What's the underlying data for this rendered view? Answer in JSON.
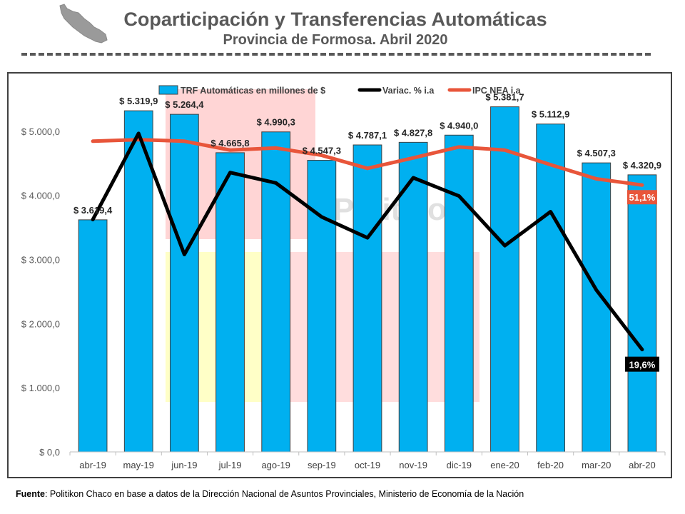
{
  "header": {
    "title": "Coparticipación y Transferencias Automáticas",
    "subtitle": "Provincia de Formosa. Abril 2020"
  },
  "footer": {
    "source_label": "Fuente",
    "source_text": ": Politikon Chaco en base a datos de la Dirección Nacional de Asuntos Provinciales, Ministerio de Economía de la Nación"
  },
  "colors": {
    "bars": "#00B0F0",
    "variation_line": "#000000",
    "ipc_line": "#E8553A",
    "watermark_red": "#FFB3B3",
    "watermark_yellow": "#FFFF99"
  },
  "chart_data": {
    "type": "bar",
    "categories": [
      "abr-19",
      "may-19",
      "jun-19",
      "jul-19",
      "ago-19",
      "sep-19",
      "oct-19",
      "nov-19",
      "dic-19",
      "ene-20",
      "feb-20",
      "mar-20",
      "abr-20"
    ],
    "series": [
      {
        "name": "TRF Automáticas en millones de $",
        "type": "bar",
        "values": [
          3619.4,
          5319.9,
          5264.4,
          4665.8,
          4990.3,
          4547.3,
          4787.1,
          4827.8,
          4940.0,
          5381.7,
          5112.9,
          4507.3,
          4320.9
        ],
        "labels": [
          "$ 3.619,4",
          "$ 5.319,9",
          "$ 5.264,4",
          "$ 4.665,8",
          "$ 4.990,3",
          "$ 4.547,3",
          "$ 4.787,1",
          "$ 4.827,8",
          "$ 4.940,0",
          "$ 5.381,7",
          "$ 5.112,9",
          "$ 4.507,3",
          "$ 4.320,9"
        ]
      },
      {
        "name": "Variac. % i.a",
        "type": "line",
        "values": [
          44.5,
          61.0,
          37.8,
          53.5,
          51.5,
          45.0,
          41.0,
          52.5,
          49.0,
          39.5,
          46.0,
          31.0,
          19.6
        ],
        "end_label": "19,6%"
      },
      {
        "name": "IPC NEA i.a",
        "type": "line",
        "values": [
          59.5,
          59.8,
          59.5,
          57.8,
          58.2,
          56.8,
          54.3,
          56.3,
          58.4,
          57.8,
          55.0,
          52.3,
          51.1
        ],
        "end_label": "51,1%"
      }
    ],
    "y_axis": {
      "min": 0,
      "max": 5700,
      "ticks": [
        0,
        1000,
        2000,
        3000,
        4000,
        5000
      ],
      "tick_labels": [
        "$ 0,0",
        "$ 1.000,0",
        "$ 2.000,0",
        "$ 3.000,0",
        "$ 4.000,0",
        "$ 5.000,0"
      ]
    },
    "legend_position": "top",
    "watermark": "Politikon",
    "grid": false
  }
}
